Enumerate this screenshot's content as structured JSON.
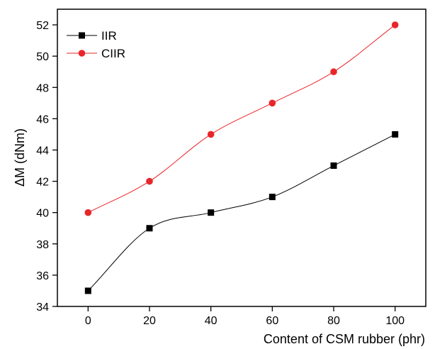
{
  "chart_data": {
    "type": "line",
    "xlabel": "Content of CSM rubber (phr)",
    "ylabel": "ΔM (dNm)",
    "x": [
      0,
      20,
      40,
      60,
      80,
      100
    ],
    "series": [
      {
        "name": "IIR",
        "values": [
          35,
          39,
          40,
          41,
          43,
          45
        ],
        "color": "#000000",
        "marker": "square"
      },
      {
        "name": "CIIR",
        "values": [
          40,
          42,
          45,
          47,
          49,
          52
        ],
        "color": "#e8262a",
        "marker": "circle"
      }
    ],
    "xlim": [
      -10,
      110
    ],
    "ylim": [
      34,
      53
    ],
    "xticks": [
      0,
      20,
      40,
      60,
      80,
      100
    ],
    "yticks": [
      34,
      36,
      38,
      40,
      42,
      44,
      46,
      48,
      50,
      52
    ],
    "grid": false,
    "legend_position": "top-left",
    "smooth": true
  }
}
